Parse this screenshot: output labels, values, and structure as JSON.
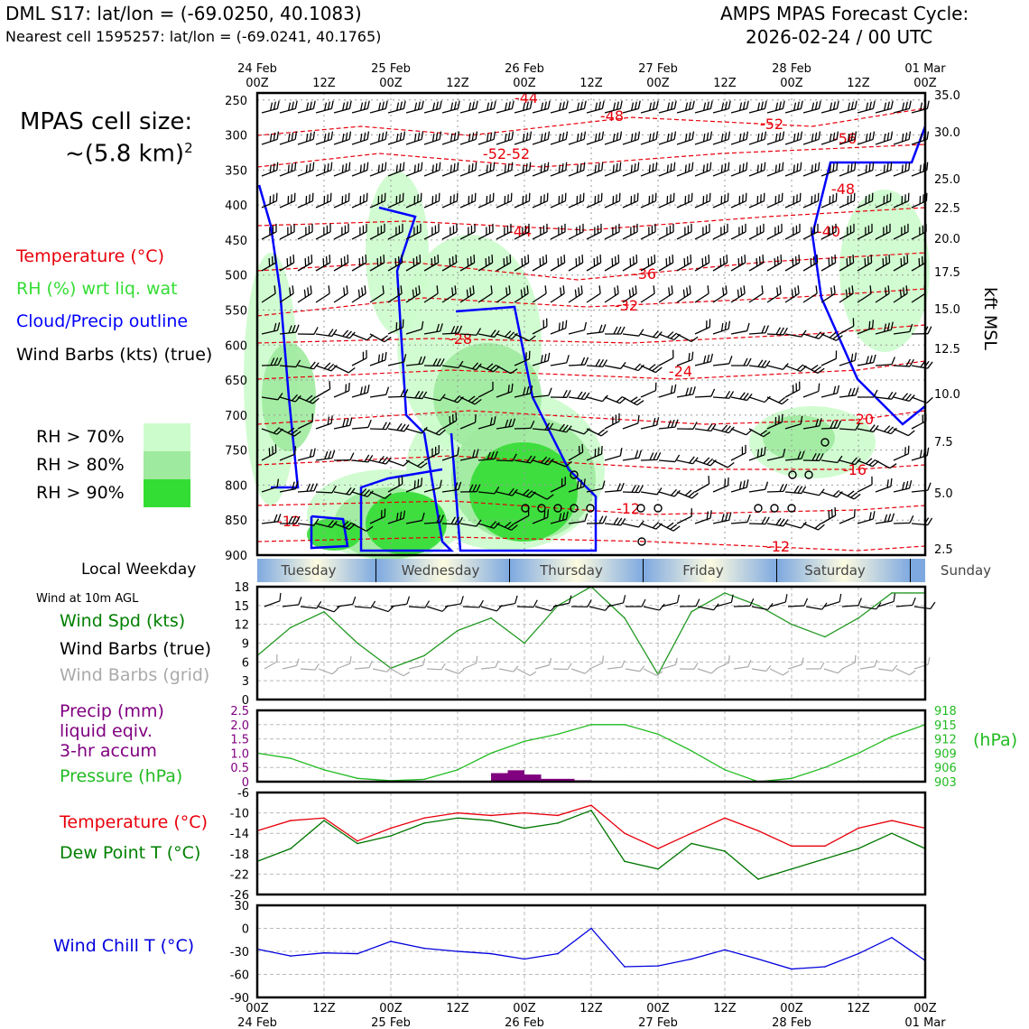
{
  "header": {
    "station": "DML S17: lat/lon = (-69.0250, 40.1083)",
    "nearest": "Nearest cell 1595257: lat/lon = (-69.0241, 40.1765)",
    "cycle_line1": "AMPS MPAS Forecast Cycle:",
    "cycle_line2": "2026-02-24 / 00 UTC"
  },
  "side": {
    "cell_size_line1": "MPAS cell size:",
    "cell_size_line2": "~(5.8 km)",
    "cell_size_sup": "2",
    "legend_temperature": "Temperature (°C)",
    "legend_rh": "RH (%) wrt liq. wat",
    "legend_cloud": "Cloud/Precip outline",
    "legend_barbs": "Wind Barbs (kts) (true)",
    "rh70": "RH > 70%",
    "rh80": "RH > 80%",
    "rh90": "RH > 90%",
    "local_weekday": "Local Weekday",
    "wind10m": "Wind at 10m AGL",
    "wind_spd": "Wind Spd (kts)",
    "wind_barbs_true": "Wind Barbs (true)",
    "wind_barbs_grid": "Wind Barbs (grid)",
    "precip1": "Precip (mm)",
    "precip2": "liquid eqiv.",
    "precip3": "3-hr accum",
    "pressure": "Pressure (hPa)",
    "hpa": "(hPa)",
    "temp": "Temperature (°C)",
    "dew": "Dew Point T (°C)",
    "chill": "Wind Chill T (°C)",
    "kft": "kft MSL"
  },
  "colors": {
    "temperature": "#e8000b",
    "rh": "#33dd33",
    "cloud": "#0000ff",
    "precip": "#800080",
    "pressure": "#22bb22",
    "dew": "#007700",
    "chill": "#0000dd",
    "rh70": "#ccfccc",
    "rh80": "#9eea9e",
    "rh90": "#33dd33"
  },
  "time_axis": {
    "top_dates": [
      "24 Feb",
      "25 Feb",
      "26 Feb",
      "27 Feb",
      "28 Feb",
      "01 Mar"
    ],
    "tick_labels": [
      "00Z",
      "12Z",
      "00Z",
      "12Z",
      "00Z",
      "12Z",
      "00Z",
      "12Z",
      "00Z",
      "12Z",
      "00Z"
    ]
  },
  "weekdays": [
    "Tuesday",
    "Wednesday",
    "Thursday",
    "Friday",
    "Saturday",
    "Sunday"
  ],
  "chart_data": [
    {
      "type": "heatmap",
      "name": "upper-air time-height section",
      "y_pressure_ticks": [
        250,
        300,
        350,
        400,
        450,
        500,
        550,
        600,
        650,
        700,
        750,
        800,
        850,
        900
      ],
      "y_kft_ticks": [
        "35.0",
        "30.0",
        "25.0",
        "22.5",
        "20.0",
        "17.5",
        "15.0",
        "12.5",
        "10.0",
        "7.5",
        "5.0",
        "2.5"
      ],
      "temperature_contour_labels": [
        "-44",
        "-48",
        "-52",
        "-52",
        "-56",
        "-52",
        "-48",
        "-44",
        "-40",
        "-36",
        "-32",
        "-28",
        "-24",
        "-20",
        "-16",
        "-12",
        "-12",
        "-12"
      ],
      "rh_levels": [
        "RH > 70%",
        "RH > 80%",
        "RH > 90%"
      ]
    },
    {
      "type": "line",
      "name": "10m wind speed",
      "x_hours": [
        0,
        6,
        12,
        18,
        24,
        30,
        36,
        42,
        48,
        54,
        60,
        66,
        72,
        78,
        84,
        90,
        96,
        102,
        108,
        114,
        120
      ],
      "values": [
        7,
        11.5,
        14,
        9,
        5,
        7,
        11,
        13,
        9,
        15,
        18,
        13,
        4,
        14,
        17,
        15,
        12,
        10,
        13,
        17,
        17
      ],
      "ylim": [
        0,
        18
      ],
      "yticks": [
        "0",
        "3",
        "6",
        "9",
        "12",
        "15",
        "18"
      ]
    },
    {
      "type": "bar",
      "name": "precip 3-hr",
      "x_hours": [
        42,
        45,
        48,
        51,
        54,
        57,
        60
      ],
      "values": [
        0.3,
        0.4,
        0.25,
        0.1,
        0.1,
        0.05,
        0.02
      ],
      "ylim": [
        0,
        2.5
      ],
      "yticks": [
        "0",
        "0.5",
        "1.0",
        "1.5",
        "2.0",
        "2.5"
      ]
    },
    {
      "type": "line",
      "name": "pressure",
      "x_hours": [
        0,
        6,
        12,
        18,
        24,
        30,
        36,
        42,
        48,
        54,
        60,
        66,
        72,
        78,
        84,
        90,
        96,
        102,
        108,
        114,
        120
      ],
      "values": [
        909,
        907.9,
        905.5,
        903.7,
        903.2,
        903.5,
        905.5,
        909,
        911.5,
        913,
        915,
        915,
        913,
        909.5,
        905.5,
        903,
        903.7,
        906,
        909,
        912.5,
        915
      ],
      "ylim": [
        903,
        918
      ],
      "yticks": [
        "903",
        "906",
        "909",
        "912",
        "915",
        "918"
      ]
    },
    {
      "type": "line",
      "name": "temperature and dew point",
      "x_hours": [
        0,
        6,
        12,
        18,
        24,
        30,
        36,
        42,
        48,
        54,
        60,
        66,
        72,
        78,
        84,
        90,
        96,
        102,
        108,
        114,
        120
      ],
      "series": [
        {
          "name": "Temperature",
          "values": [
            -13.5,
            -11.5,
            -11,
            -15.5,
            -13,
            -11,
            -10,
            -10.5,
            -10,
            -10.5,
            -8.5,
            -14,
            -17,
            -14,
            -11,
            -13.5,
            -16.5,
            -16.5,
            -13,
            -11.5,
            -13
          ]
        },
        {
          "name": "Dew Point",
          "values": [
            -19.5,
            -17,
            -11.5,
            -16,
            -14.5,
            -12,
            -11,
            -11.5,
            -13,
            -12,
            -9.5,
            -19.5,
            -21,
            -16,
            -17.5,
            -23,
            -21,
            -19,
            -17,
            -14,
            -17
          ]
        }
      ],
      "ylim": [
        -26,
        -6
      ],
      "yticks": [
        "-26",
        "-22",
        "-18",
        "-14",
        "-10",
        "-6"
      ]
    },
    {
      "type": "line",
      "name": "wind chill",
      "x_hours": [
        0,
        6,
        12,
        18,
        24,
        30,
        36,
        42,
        48,
        54,
        60,
        66,
        72,
        78,
        84,
        90,
        96,
        102,
        108,
        114,
        120
      ],
      "values": [
        -27,
        -36,
        -32,
        -33,
        -17,
        -26,
        -30,
        -33,
        -40,
        -33,
        0,
        -50,
        -49,
        -40,
        -28,
        -40,
        -53,
        -50,
        -33,
        -12,
        -42
      ],
      "ylim": [
        -90,
        30
      ],
      "yticks": [
        "-90",
        "-60",
        "-30",
        "0",
        "30"
      ]
    }
  ]
}
